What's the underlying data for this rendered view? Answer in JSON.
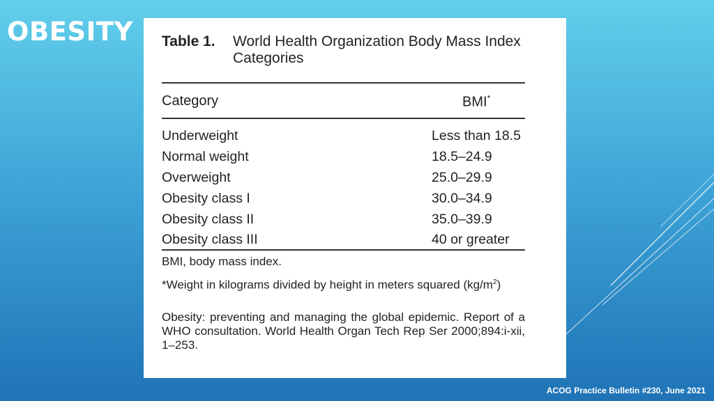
{
  "slide": {
    "title": "OBESITY",
    "footer": "ACOG Practice Bulletin #230, June 2021"
  },
  "table": {
    "number": "Table 1.",
    "caption": "World Health Organization Body Mass Index Categories",
    "columns": {
      "category": "Category",
      "bmi": "BMI",
      "bmi_mark": "*"
    },
    "rows": [
      {
        "category": "Underweight",
        "bmi": "Less than 18.5"
      },
      {
        "category": "Normal weight",
        "bmi": "18.5–24.9"
      },
      {
        "category": "Overweight",
        "bmi": "25.0–29.9"
      },
      {
        "category": "Obesity class I",
        "bmi": "30.0–34.9"
      },
      {
        "category": "Obesity class II",
        "bmi": "35.0–39.9"
      },
      {
        "category": "Obesity class III",
        "bmi": "40 or greater"
      }
    ],
    "notes": {
      "abbrev": "BMI, body mass index.",
      "footnote_a": "*Weight in kilograms divided by height in meters squared (kg/m",
      "footnote_sup": "2",
      "footnote_b": ")",
      "source": "Obesity: preventing and managing the global epidemic. Report of a WHO consultation. World Health Organ Tech Rep Ser 2000;894:i-xii, 1–253."
    }
  }
}
